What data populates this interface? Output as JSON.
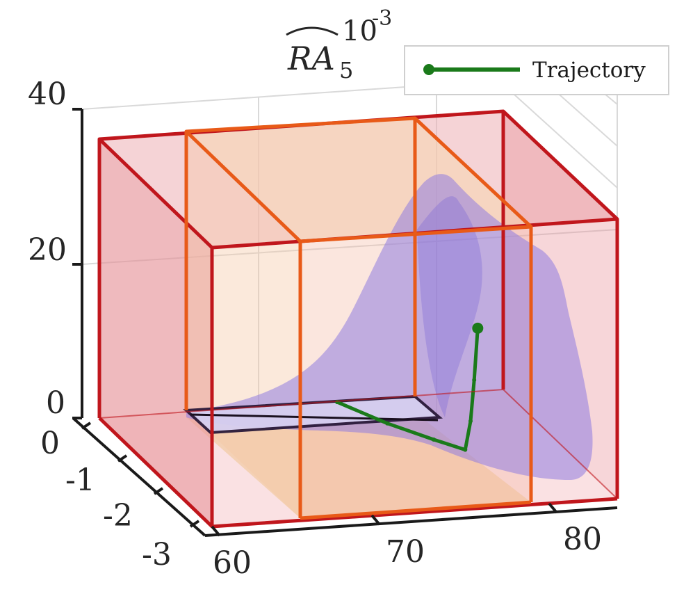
{
  "chart_data": {
    "type": "3d-surface-with-boxes",
    "title": "RA",
    "title_subscript": "5",
    "z_multiplier": "10",
    "z_multiplier_exponent": "-3",
    "x_ticks": [
      "60",
      "70",
      "80"
    ],
    "y_ticks": [
      "0",
      "-1",
      "-2",
      "-3"
    ],
    "z_ticks": [
      "0",
      "20",
      "40"
    ],
    "xlim": [
      60,
      82
    ],
    "ylim": [
      -3,
      0
    ],
    "zlim": [
      0,
      40
    ],
    "grid": true,
    "legend": {
      "placement": "top-right",
      "entries": [
        {
          "name": "Trajectory",
          "color": "#1a7a1a"
        }
      ]
    },
    "series": [
      {
        "name": "Trajectory",
        "color": "#1a7a1a",
        "points": [
          {
            "x": 72.5,
            "y": -0.2,
            "z": 1.0
          },
          {
            "x": 74.0,
            "y": -0.8,
            "z": 0.8
          },
          {
            "x": 75.5,
            "y": -1.3,
            "z": 0.8
          },
          {
            "x": 76.6,
            "y": -1.6,
            "z": 0.7
          },
          {
            "x": 77.3,
            "y": -1.4,
            "z": 3.5
          },
          {
            "x": 77.9,
            "y": -1.2,
            "z": 8.0
          },
          {
            "x": 78.3,
            "y": -1.1,
            "z": 14.5
          }
        ]
      }
    ],
    "colors": {
      "outer_box": "#c0161c",
      "inner_box": "#e85a18",
      "box_fill": "#e88a92",
      "inner_fill": "#f7e1a8",
      "surface": "#8f7be0",
      "base_plate": "#2a1a3a"
    }
  }
}
